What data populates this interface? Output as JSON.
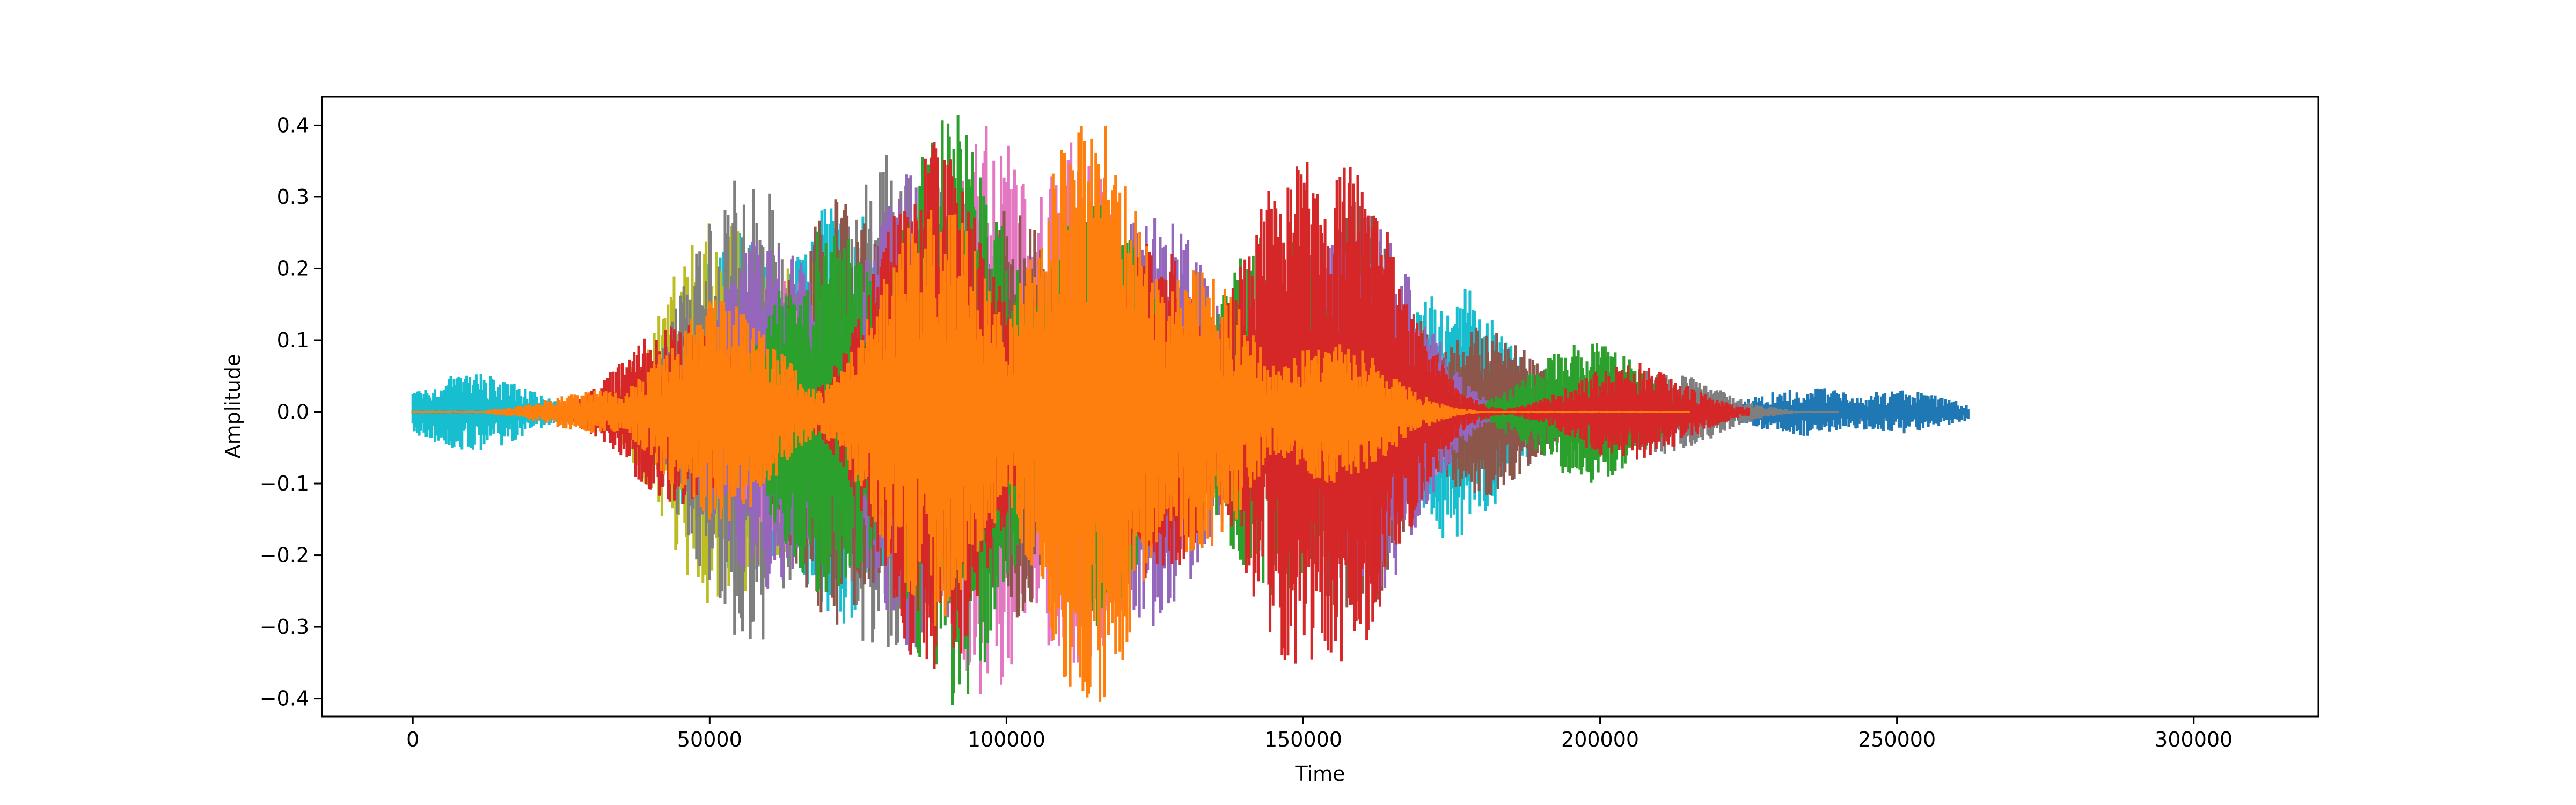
{
  "chart_data": {
    "type": "area",
    "title": "",
    "xlabel": "Time",
    "ylabel": "Amplitude",
    "xlim": [
      -15300,
      321000
    ],
    "ylim": [
      -0.425,
      0.44
    ],
    "x_ticks": [
      {
        "value": 0,
        "label": "0"
      },
      {
        "value": 50000,
        "label": "50000"
      },
      {
        "value": 100000,
        "label": "100000"
      },
      {
        "value": 150000,
        "label": "150000"
      },
      {
        "value": 200000,
        "label": "200000"
      },
      {
        "value": 250000,
        "label": "250000"
      },
      {
        "value": 300000,
        "label": "300000"
      }
    ],
    "y_ticks": [
      {
        "value": 0.4,
        "label": "0.4"
      },
      {
        "value": 0.3,
        "label": "0.3"
      },
      {
        "value": 0.2,
        "label": "0.2"
      },
      {
        "value": 0.1,
        "label": "0.1"
      },
      {
        "value": 0.0,
        "label": "0.0"
      },
      {
        "value": -0.1,
        "label": "−0.1"
      },
      {
        "value": -0.2,
        "label": "−0.2"
      },
      {
        "value": -0.3,
        "label": "−0.3"
      },
      {
        "value": -0.4,
        "label": "−0.4"
      }
    ],
    "grid": false,
    "series": [
      {
        "color": "#1f77b4",
        "x_range": [
          0,
          262000
        ],
        "peaks": [
          [
            60000,
            0.2
          ],
          [
            95000,
            0.22
          ],
          [
            120000,
            0.21
          ],
          [
            235000,
            0.035
          ],
          [
            250000,
            0.03
          ]
        ]
      },
      {
        "color": "#17becf",
        "x_range": [
          0,
          240000
        ],
        "peaks": [
          [
            10000,
            0.055
          ],
          [
            55000,
            0.25
          ],
          [
            72000,
            0.3
          ],
          [
            110000,
            0.2
          ],
          [
            175000,
            0.18
          ]
        ]
      },
      {
        "color": "#bcbd22",
        "x_range": [
          0,
          230000
        ],
        "peaks": [
          [
            52000,
            0.28
          ],
          [
            65000,
            0.22
          ],
          [
            122000,
            0.18
          ],
          [
            200000,
            0.05
          ]
        ]
      },
      {
        "color": "#7f7f7f",
        "x_range": [
          0,
          240000
        ],
        "peaks": [
          [
            56000,
            0.34
          ],
          [
            80000,
            0.36
          ],
          [
            155000,
            0.16
          ],
          [
            210000,
            0.06
          ]
        ]
      },
      {
        "color": "#e377c2",
        "x_range": [
          0,
          225000
        ],
        "peaks": [
          [
            65000,
            0.2
          ],
          [
            97000,
            0.4
          ],
          [
            112000,
            0.38
          ],
          [
            165000,
            0.13
          ],
          [
            195000,
            0.05
          ]
        ]
      },
      {
        "color": "#8c564b",
        "x_range": [
          0,
          220000
        ],
        "peaks": [
          [
            72000,
            0.3
          ],
          [
            100000,
            0.3
          ],
          [
            158000,
            0.3
          ],
          [
            180000,
            0.12
          ]
        ]
      },
      {
        "color": "#9467bd",
        "x_range": [
          0,
          210000
        ],
        "peaks": [
          [
            60000,
            0.25
          ],
          [
            85000,
            0.34
          ],
          [
            125000,
            0.3
          ],
          [
            160000,
            0.28
          ]
        ]
      },
      {
        "color": "#2ca02c",
        "x_range": [
          0,
          215000
        ],
        "peaks": [
          [
            70000,
            0.26
          ],
          [
            91000,
            0.42
          ],
          [
            115000,
            0.3
          ],
          [
            145000,
            0.26
          ],
          [
            198000,
            0.1
          ]
        ]
      },
      {
        "color": "#d62728",
        "x_range": [
          0,
          225000
        ],
        "peaks": [
          [
            45000,
            0.13
          ],
          [
            88000,
            0.38
          ],
          [
            125000,
            0.24
          ],
          [
            149000,
            0.36
          ],
          [
            157000,
            0.35
          ],
          [
            205000,
            0.07
          ]
        ]
      },
      {
        "color": "#ff7f0e",
        "x_range": [
          0,
          215000
        ],
        "peaks": [
          [
            32000,
            0.03
          ],
          [
            52000,
            0.16
          ],
          [
            88000,
            0.3
          ],
          [
            114000,
            0.42
          ],
          [
            132000,
            0.2
          ],
          [
            155000,
            0.1
          ]
        ]
      }
    ]
  }
}
